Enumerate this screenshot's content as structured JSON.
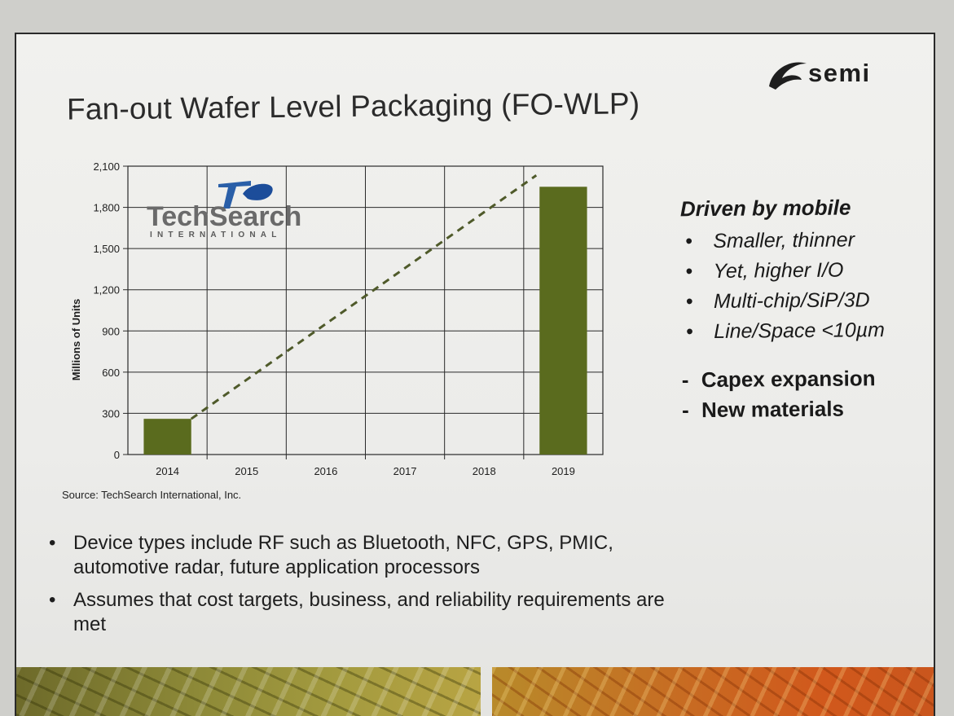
{
  "slide": {
    "title": "Fan-out Wafer Level Packaging (FO-WLP)",
    "logo_text": "semi",
    "source": "Source: TechSearch International, Inc."
  },
  "watermark": {
    "brand": "TechSearch",
    "sub": "INTERNATIONAL"
  },
  "side_panel": {
    "heading": "Driven by mobile",
    "bullets": [
      "Smaller, thinner",
      "Yet, higher I/O",
      "Multi-chip/SiP/3D",
      "Line/Space <10µm"
    ],
    "dash_items": [
      "Capex expansion",
      "New materials"
    ]
  },
  "bottom_bullets": [
    "Device types include RF such as Bluetooth, NFC, GPS, PMIC, automotive radar, future application processors",
    "Assumes that cost targets, business, and reliability requirements are met"
  ],
  "colors": {
    "bar": "#5a6b1e",
    "trend": "#4f5a2a",
    "grid": "#2a2a2a",
    "deco_left": "#8e8a38",
    "deco_right": "#c86a22"
  },
  "chart_data": {
    "type": "bar",
    "categories": [
      "2014",
      "2015",
      "2016",
      "2017",
      "2018",
      "2019"
    ],
    "values": [
      260,
      null,
      null,
      null,
      null,
      1950
    ],
    "trend_line": {
      "style": "dashed",
      "from": [
        "2014",
        260
      ],
      "to": [
        "2019",
        1950
      ]
    },
    "title": "",
    "xlabel": "",
    "ylabel": "Millions of Units",
    "ylim": [
      0,
      2100
    ],
    "yticks": [
      0,
      300,
      600,
      900,
      1200,
      1500,
      1800,
      2100
    ],
    "ytick_labels": [
      "0",
      "300",
      "600",
      "900",
      "1,200",
      "1,500",
      "1,800",
      "2,100"
    ],
    "grid": true,
    "legend": "none"
  }
}
